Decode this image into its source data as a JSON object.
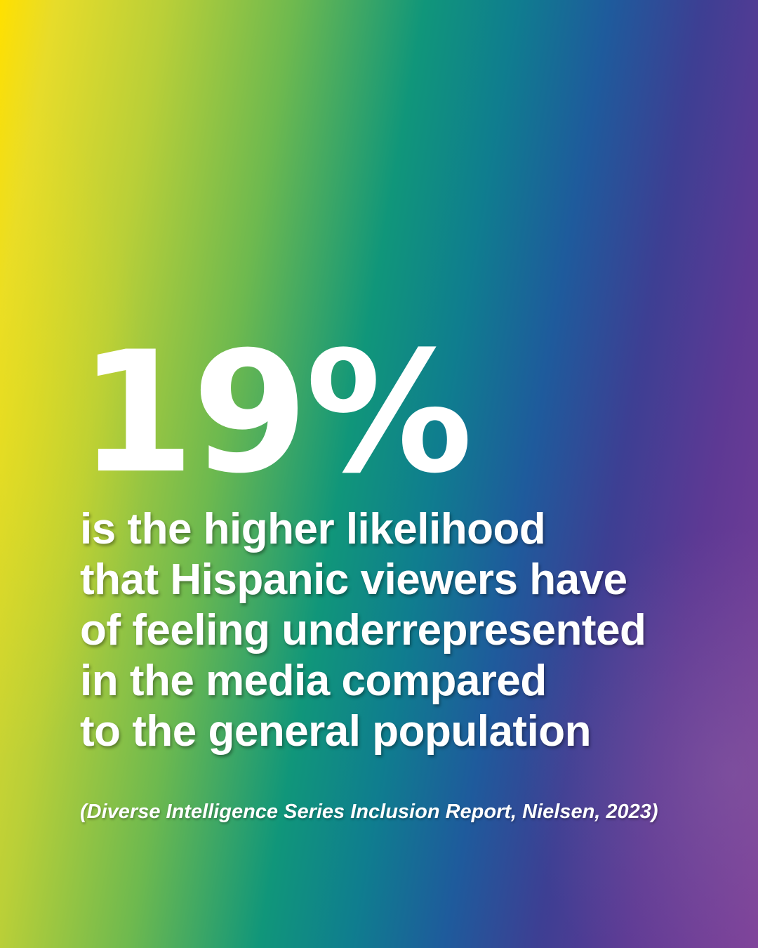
{
  "stat": {
    "value": "19%"
  },
  "statement": {
    "lines": [
      "is the higher likelihood",
      "that Hispanic viewers have",
      "of feeling underrepresented",
      "in the media compared",
      "to the general population"
    ]
  },
  "source": {
    "citation": "(Diverse Intelligence Series Inclusion Report, Nielsen, 2023)"
  },
  "colors": {
    "text": "#ffffff",
    "gradient_left": "#ffe000",
    "gradient_middle": "#10967a",
    "gradient_right": "#7d3f98"
  }
}
